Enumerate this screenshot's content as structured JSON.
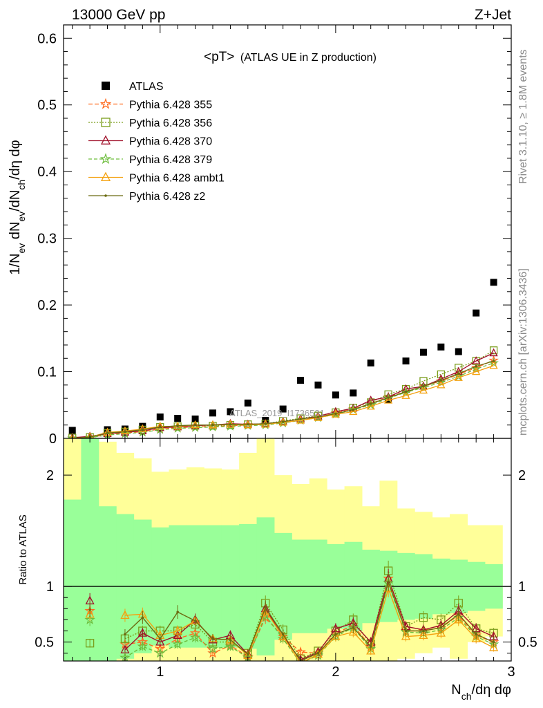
{
  "header": {
    "left": "13000 GeV pp",
    "right": "Z+Jet",
    "side_top": "Rivet 3.1.10, ≥ 1.8M events",
    "side_bottom": "mcplots.cern.ch [arXiv:1306.3436]",
    "watermark": "ATLAS_2019_I1736531"
  },
  "chart_data": [
    {
      "type": "scatter",
      "panel": "main",
      "title": "<pT>",
      "title_suffix": "(ATLAS UE in Z production)",
      "xlabel": "N_ch/dη dφ",
      "ylabel": "1/N_ev dN_ev/dN_ch/dη dφ",
      "xlim": [
        0.45,
        3.0
      ],
      "ylim": [
        0,
        0.62
      ],
      "yticks": [
        0,
        0.1,
        0.2,
        0.3,
        0.4,
        0.5,
        0.6
      ],
      "ytick_labels": [
        "0",
        "0.1",
        "0.2",
        "0.3",
        "0.4",
        "0.5",
        "0.6"
      ],
      "legend_position": "top-left",
      "x": [
        0.5,
        0.6,
        0.7,
        0.8,
        0.9,
        1.0,
        1.1,
        1.2,
        1.3,
        1.4,
        1.5,
        1.6,
        1.7,
        1.8,
        1.9,
        2.0,
        2.1,
        2.2,
        2.3,
        2.4,
        2.5,
        2.6,
        2.7,
        2.8,
        2.9
      ],
      "series": [
        {
          "name": "ATLAS",
          "color": "#000000",
          "marker": "square",
          "values": [
            0.012,
            0.0,
            0.013,
            0.014,
            0.018,
            0.032,
            0.03,
            0.029,
            0.038,
            0.04,
            0.053,
            0.027,
            0.044,
            0.087,
            0.08,
            0.065,
            0.068,
            0.113,
            0.058,
            0.116,
            0.129,
            0.137,
            0.13,
            0.188,
            0.234
          ]
        },
        {
          "name": "Pythia 6.428 355",
          "color": "#ff6a1e",
          "marker": "star",
          "dash": "6,3",
          "values": [
            0.0,
            0.001,
            0.006,
            0.008,
            0.01,
            0.014,
            0.016,
            0.017,
            0.018,
            0.019,
            0.02,
            0.021,
            0.024,
            0.027,
            0.032,
            0.038,
            0.044,
            0.052,
            0.062,
            0.07,
            0.078,
            0.086,
            0.096,
            0.106,
            0.117
          ]
        },
        {
          "name": "Pythia 6.428 356",
          "color": "#7a9d1a",
          "marker": "open-square",
          "dash": "2,2",
          "values": [
            0.001,
            0.002,
            0.008,
            0.01,
            0.013,
            0.017,
            0.018,
            0.019,
            0.019,
            0.02,
            0.021,
            0.022,
            0.026,
            0.03,
            0.034,
            0.039,
            0.046,
            0.054,
            0.066,
            0.074,
            0.086,
            0.096,
            0.106,
            0.116,
            0.132
          ]
        },
        {
          "name": "Pythia 6.428 370",
          "color": "#a0102a",
          "marker": "open-triangle",
          "dash": "",
          "values": [
            0.001,
            0.003,
            0.007,
            0.009,
            0.011,
            0.016,
            0.017,
            0.019,
            0.02,
            0.022,
            0.021,
            0.022,
            0.025,
            0.029,
            0.033,
            0.04,
            0.045,
            0.057,
            0.062,
            0.074,
            0.078,
            0.089,
            0.1,
            0.116,
            0.128
          ]
        },
        {
          "name": "Pythia 6.428 379",
          "color": "#6dbd3c",
          "marker": "star",
          "dash": "5,3",
          "values": [
            0.0,
            0.001,
            0.005,
            0.007,
            0.009,
            0.013,
            0.015,
            0.016,
            0.017,
            0.018,
            0.019,
            0.02,
            0.023,
            0.027,
            0.031,
            0.036,
            0.043,
            0.05,
            0.06,
            0.069,
            0.076,
            0.084,
            0.093,
            0.104,
            0.113
          ]
        },
        {
          "name": "Pythia 6.428 ambt1",
          "color": "#f4a10f",
          "marker": "open-triangle",
          "dash": "",
          "values": [
            0.0,
            0.002,
            0.009,
            0.011,
            0.014,
            0.018,
            0.018,
            0.02,
            0.02,
            0.021,
            0.02,
            0.021,
            0.024,
            0.027,
            0.031,
            0.036,
            0.04,
            0.048,
            0.057,
            0.064,
            0.072,
            0.08,
            0.091,
            0.1,
            0.109
          ]
        },
        {
          "name": "Pythia 6.428 z2",
          "color": "#6b6b10",
          "marker": "dot",
          "dash": "",
          "values": [
            0.0,
            0.002,
            0.008,
            0.01,
            0.013,
            0.017,
            0.019,
            0.02,
            0.02,
            0.021,
            0.021,
            0.022,
            0.025,
            0.029,
            0.032,
            0.037,
            0.043,
            0.052,
            0.061,
            0.07,
            0.078,
            0.087,
            0.097,
            0.108,
            0.116
          ]
        }
      ]
    },
    {
      "type": "line",
      "panel": "ratio",
      "xlabel": "N_ch/dη dφ",
      "ylabel": "Ratio to ATLAS",
      "xlim": [
        0.45,
        3.0
      ],
      "ylim": [
        0.33,
        2.33
      ],
      "yticks": [
        0.5,
        1,
        2
      ],
      "ytick_labels": [
        "0.5",
        "1",
        "2"
      ],
      "xticks": [
        1,
        2,
        3
      ],
      "xtick_labels": [
        "1",
        "2",
        "3"
      ],
      "x": [
        0.5,
        0.6,
        0.7,
        0.8,
        0.9,
        1.0,
        1.1,
        1.2,
        1.3,
        1.4,
        1.5,
        1.6,
        1.7,
        1.8,
        1.9,
        2.0,
        2.1,
        2.2,
        2.3,
        2.4,
        2.5,
        2.6,
        2.7,
        2.8,
        2.9
      ],
      "band_inner": {
        "color": "#99ff99",
        "upper": [
          1.78,
          2.4,
          1.72,
          1.65,
          1.6,
          1.53,
          1.55,
          1.55,
          1.55,
          1.55,
          1.56,
          1.62,
          1.48,
          1.42,
          1.42,
          1.38,
          1.4,
          1.33,
          1.32,
          1.3,
          1.29,
          1.25,
          1.24,
          1.22,
          1.2
        ],
        "lower": [
          0.22,
          0.0,
          0.28,
          0.35,
          0.4,
          0.47,
          0.45,
          0.45,
          0.45,
          0.45,
          0.44,
          0.38,
          0.52,
          0.58,
          0.58,
          0.62,
          0.6,
          0.67,
          0.68,
          0.7,
          0.71,
          0.75,
          0.76,
          0.78,
          0.8
        ]
      },
      "band_outer": {
        "color": "#ffff99",
        "upper": [
          2.35,
          2.4,
          2.3,
          2.2,
          2.15,
          2.03,
          2.05,
          2.07,
          2.06,
          2.05,
          2.2,
          2.35,
          2.0,
          1.92,
          1.97,
          1.87,
          1.9,
          1.72,
          1.95,
          1.7,
          1.67,
          1.62,
          1.65,
          1.55,
          1.55
        ],
        "lower": [
          0.0,
          0.0,
          0.0,
          0.0,
          0.0,
          0.0,
          0.0,
          0.0,
          0.0,
          0.0,
          0.0,
          0.0,
          0.0,
          0.1,
          0.0,
          0.2,
          0.2,
          0.3,
          0.1,
          0.35,
          0.4,
          0.45,
          0.35,
          0.5,
          0.55
        ]
      },
      "series": [
        {
          "name": "Pythia 6.428 355",
          "values": [
            null,
            0.78,
            null,
            0.48,
            0.5,
            0.44,
            0.53,
            0.58,
            0.4,
            0.47,
            0.37,
            0.72,
            0.55,
            0.41,
            0.4,
            0.58,
            0.65,
            0.46,
            1.07,
            0.6,
            0.6,
            0.63,
            0.74,
            0.56,
            0.5
          ]
        },
        {
          "name": "Pythia 6.428 356",
          "values": [
            null,
            0.49,
            null,
            0.53,
            0.6,
            0.6,
            0.6,
            0.66,
            0.5,
            0.5,
            0.4,
            0.85,
            0.61,
            0.35,
            0.42,
            0.6,
            0.7,
            0.48,
            1.14,
            0.64,
            0.72,
            0.7,
            0.85,
            0.62,
            0.58
          ]
        },
        {
          "name": "Pythia 6.428 370",
          "values": [
            null,
            0.87,
            null,
            0.43,
            0.58,
            0.5,
            0.56,
            0.7,
            0.52,
            0.56,
            0.39,
            0.8,
            0.55,
            0.34,
            0.41,
            0.62,
            0.67,
            0.5,
            1.07,
            0.64,
            0.61,
            0.65,
            0.78,
            0.62,
            0.55
          ]
        },
        {
          "name": "Pythia 6.428 379",
          "values": [
            null,
            0.7,
            null,
            0.36,
            0.46,
            0.4,
            0.48,
            0.54,
            0.44,
            0.46,
            0.36,
            0.74,
            0.53,
            0.31,
            0.38,
            0.55,
            0.63,
            0.44,
            1.03,
            0.59,
            0.58,
            0.61,
            0.72,
            0.55,
            0.48
          ]
        },
        {
          "name": "Pythia 6.428 ambt1",
          "values": [
            null,
            0.75,
            null,
            0.74,
            0.75,
            0.56,
            0.6,
            0.69,
            0.53,
            0.52,
            0.38,
            0.78,
            0.55,
            0.31,
            0.39,
            0.55,
            0.59,
            0.42,
            0.98,
            0.55,
            0.56,
            0.58,
            0.7,
            0.53,
            0.45
          ]
        },
        {
          "name": "Pythia 6.428 z2",
          "values": [
            null,
            0.79,
            null,
            0.57,
            0.72,
            0.53,
            0.77,
            0.69,
            0.53,
            0.52,
            0.39,
            0.81,
            0.57,
            0.33,
            0.4,
            0.57,
            0.63,
            0.46,
            1.04,
            0.6,
            0.6,
            0.63,
            0.75,
            0.57,
            0.5
          ]
        }
      ]
    }
  ]
}
